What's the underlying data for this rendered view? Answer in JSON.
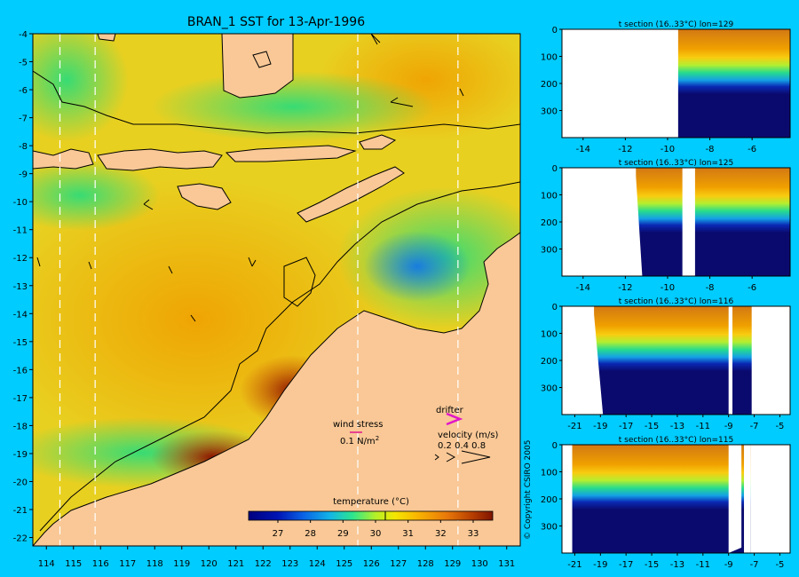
{
  "title": "BRAN_1 SST for 13-Apr-1996",
  "copyright": "© Copyright CSIRO 2005",
  "colors": {
    "background": "#00ccff",
    "land": "#f9c896",
    "coast": "#000000",
    "cold": "#0a0a6e",
    "warm": "#c23a0a"
  },
  "chart_data": [
    {
      "type": "heatmap",
      "name": "sst-map",
      "title": "BRAN_1 SST for 13-Apr-1996",
      "xlim": [
        113.5,
        131.5
      ],
      "ylim": [
        -22.3,
        -4
      ],
      "x_ticks": [
        114,
        115,
        116,
        117,
        118,
        119,
        120,
        121,
        122,
        123,
        124,
        125,
        126,
        127,
        128,
        129,
        130,
        131
      ],
      "y_ticks": [
        -4,
        -5,
        -6,
        -7,
        -8,
        -9,
        -10,
        -11,
        -12,
        -13,
        -14,
        -15,
        -16,
        -17,
        -18,
        -19,
        -20,
        -21,
        -22
      ],
      "section_lines_lon": [
        114.5,
        115.8,
        125.5,
        129.2
      ],
      "colorbar": {
        "label": "temperature (°C)",
        "range": [
          26.1,
          33.6
        ],
        "ticks": [
          27,
          28,
          29,
          30,
          31,
          32,
          33
        ],
        "marker": 30.3,
        "stops": [
          {
            "t": 26.1,
            "c": "#00007f"
          },
          {
            "t": 27.0,
            "c": "#0014b4"
          },
          {
            "t": 27.8,
            "c": "#0a64e6"
          },
          {
            "t": 28.6,
            "c": "#12b4e6"
          },
          {
            "t": 29.3,
            "c": "#2ee68c"
          },
          {
            "t": 30.0,
            "c": "#b4f028"
          },
          {
            "t": 30.6,
            "c": "#f5e600"
          },
          {
            "t": 31.3,
            "c": "#f8b400"
          },
          {
            "t": 32.2,
            "c": "#e8780a"
          },
          {
            "t": 33.0,
            "c": "#b43c00"
          },
          {
            "t": 33.6,
            "c": "#7f1400"
          }
        ]
      },
      "legend": {
        "wind_stress_label": "wind stress",
        "wind_stress_value": "0.1 N/m",
        "wind_stress_superscript": "2",
        "drifter_label": "drifter",
        "velocity_label": "velocity (m/s)",
        "velocity_values": "0.2 0.4 0.8"
      }
    },
    {
      "type": "heatmap",
      "name": "section-lon129",
      "title": "t section (16..33°C) lon=129",
      "xlim": [
        -15,
        -4.2
      ],
      "ylim": [
        0,
        400
      ],
      "x_ticks": [
        -14,
        -12,
        -10,
        -8,
        -6
      ],
      "y_ticks": [
        0,
        100,
        200,
        300
      ]
    },
    {
      "type": "heatmap",
      "name": "section-lon125",
      "title": "t section (16..33°C) lon=125",
      "xlim": [
        -15,
        -4.2
      ],
      "ylim": [
        0,
        400
      ],
      "x_ticks": [
        -14,
        -12,
        -10,
        -8,
        -6
      ],
      "y_ticks": [
        0,
        100,
        200,
        300
      ]
    },
    {
      "type": "heatmap",
      "name": "section-lon116",
      "title": "t section (16..33°C) lon=116",
      "xlim": [
        -22,
        -4.2
      ],
      "ylim": [
        0,
        400
      ],
      "x_ticks": [
        -21,
        -19,
        -17,
        -15,
        -13,
        -11,
        -9,
        -7,
        -5
      ],
      "y_ticks": [
        0,
        100,
        200,
        300
      ]
    },
    {
      "type": "heatmap",
      "name": "section-lon115",
      "title": "t section (16..33°C) lon=115",
      "xlim": [
        -22,
        -4.2
      ],
      "ylim": [
        0,
        400
      ],
      "x_ticks": [
        -21,
        -19,
        -17,
        -15,
        -13,
        -11,
        -9,
        -7,
        -5
      ],
      "y_ticks": [
        0,
        100,
        200,
        300
      ]
    }
  ]
}
